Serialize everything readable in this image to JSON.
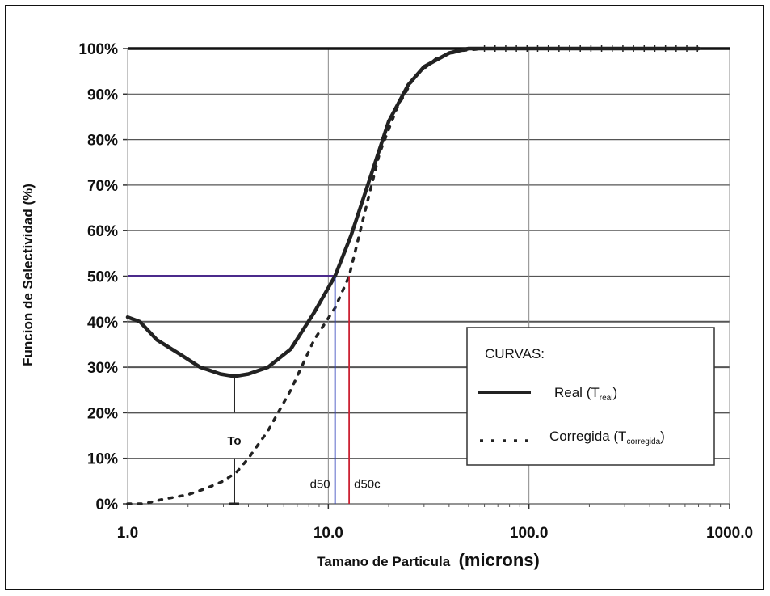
{
  "chart_data": {
    "type": "line",
    "title": "",
    "xlabel": "Tamano de Particula",
    "xlabel_unit": "(microns)",
    "ylabel": "Funcion de Selectividad  (%)",
    "x_scale": "log",
    "xlim": [
      1.0,
      1000.0
    ],
    "ylim": [
      0,
      100
    ],
    "x_ticks": [
      "1.0",
      "10.0",
      "100.0",
      "1000.0"
    ],
    "y_ticks": [
      "0%",
      "10%",
      "20%",
      "30%",
      "40%",
      "50%",
      "60%",
      "70%",
      "80%",
      "90%",
      "100%"
    ],
    "grid": true,
    "series": [
      {
        "name": "Real",
        "subscript": "Treal",
        "style": "solid",
        "color": "#222222",
        "x": [
          1.0,
          1.15,
          1.4,
          1.8,
          2.3,
          2.9,
          3.4,
          4.0,
          5.0,
          6.5,
          8.5,
          10.8,
          13.0,
          16.0,
          20.0,
          25.0,
          30.0,
          40.0,
          50.0,
          70.0,
          100.0,
          700.0
        ],
        "y": [
          41,
          40,
          36,
          33,
          30,
          28.5,
          28,
          28.5,
          30,
          34,
          42,
          50,
          59,
          71,
          84,
          92,
          96,
          99,
          100,
          100,
          100,
          100
        ]
      },
      {
        "name": "Corregida",
        "subscript": "Tcorregida",
        "style": "dotted",
        "color": "#222222",
        "x": [
          1.0,
          1.2,
          1.5,
          2.0,
          2.5,
          3.0,
          3.5,
          4.0,
          5.0,
          6.5,
          8.5,
          10.8,
          12.7,
          15.0,
          18.0,
          22.0,
          27.0,
          35.0,
          45.0,
          60.0,
          100.0,
          700.0
        ],
        "y": [
          0,
          0,
          1,
          2,
          3.5,
          5,
          7,
          10,
          16,
          25,
          36,
          43,
          50,
          63,
          77,
          87,
          94,
          98,
          99.5,
          100,
          100,
          100
        ]
      }
    ],
    "horizontal_lines": [
      {
        "y": 100,
        "color": "#111111"
      },
      {
        "y": 50,
        "x_to": 10.8,
        "color": "#4b2a8c"
      }
    ],
    "markers": [
      {
        "label": "To",
        "x": 3.4,
        "y": 28
      },
      {
        "label": "d50",
        "x": 10.8,
        "color": "#3344bb"
      },
      {
        "label": "d50c",
        "x": 12.7,
        "color": "#cc2233"
      }
    ],
    "legend": {
      "title": "CURVAS:",
      "placement": "right-middle",
      "entries": [
        {
          "label": "Real",
          "sub": "real",
          "style": "solid"
        },
        {
          "label": "Corregida",
          "sub": "corregida",
          "style": "dotted"
        }
      ]
    }
  }
}
